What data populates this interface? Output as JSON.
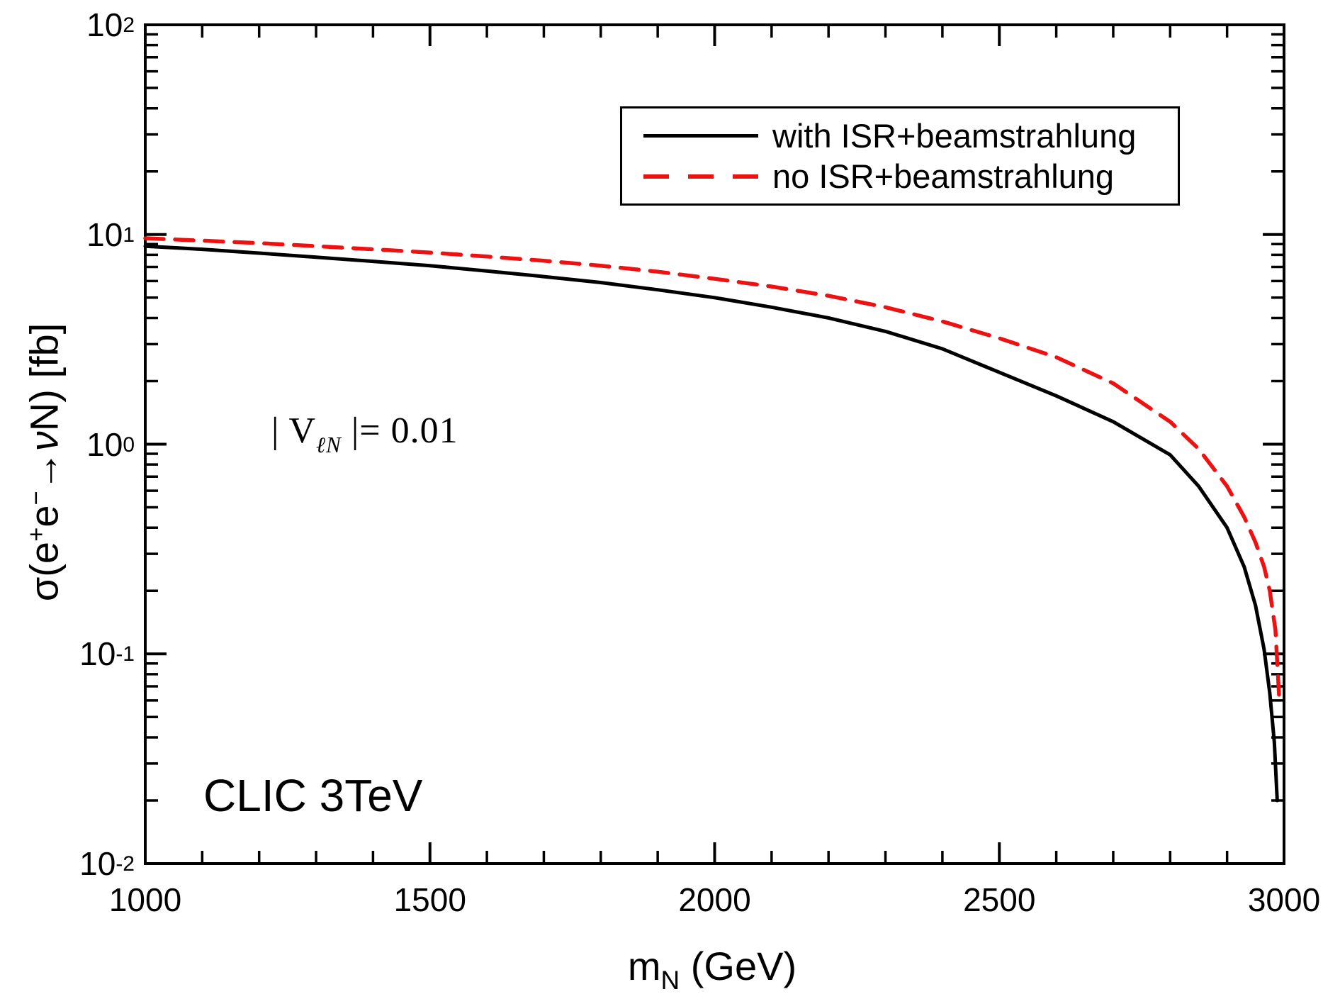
{
  "figure": {
    "background": "#ffffff",
    "frame_color": "#000000",
    "annotations": {
      "coupling_segments": [
        {
          "t": "| V"
        },
        {
          "t": "ℓN",
          "sub": true,
          "italic": true
        },
        {
          "t": " |= 0.01"
        }
      ],
      "coupling_plain": "| V_lN |= 0.01",
      "collider": "CLIC 3TeV"
    },
    "x_title_segments": [
      {
        "t": "m"
      },
      {
        "t": "N",
        "sub": true
      },
      {
        "t": " (GeV)"
      }
    ],
    "y_title_segments": [
      {
        "t": "σ(e"
      },
      {
        "t": "+",
        "sup": true
      },
      {
        "t": "e"
      },
      {
        "t": "−",
        "sup": true
      },
      {
        "t": "→"
      },
      {
        "t": "ν",
        "italic": true
      },
      {
        "t": "N) [fb]"
      }
    ],
    "legend": {
      "position": "upper right",
      "items": [
        {
          "label": "with ISR+beamstrahlung",
          "color": "#000000",
          "style": "solid"
        },
        {
          "label": "no ISR+beamstrahlung",
          "color": "#ee1111",
          "style": "dashed"
        }
      ]
    }
  },
  "chart_data": {
    "type": "line",
    "title": "",
    "xlabel": "m_N (GeV)",
    "ylabel": "sigma(e+ e- -> nu N) [fb]",
    "x_scale": "linear",
    "y_scale": "log",
    "xlim": [
      1000,
      3000
    ],
    "ylim": [
      0.01,
      100
    ],
    "grid": false,
    "legend_position": "upper right",
    "x_ticks_major": [
      1000,
      1500,
      2000,
      2500,
      3000
    ],
    "x_tick_labels": [
      "1000",
      "1500",
      "2000",
      "2500",
      "3000"
    ],
    "x_minor_step": 100,
    "y_ticks_major": [
      {
        "base": "10",
        "exp": "2",
        "value": 100
      },
      {
        "base": "10",
        "exp": "1",
        "value": 10
      },
      {
        "base": "10",
        "exp": "0",
        "value": 1
      },
      {
        "base": "10",
        "exp": "-1",
        "value": 0.1
      },
      {
        "base": "10",
        "exp": "-2",
        "value": 0.01
      }
    ],
    "series": [
      {
        "name": "with ISR+beamstrahlung",
        "curve_id": "curve-with-isr",
        "color": "#000000",
        "line": "solid",
        "x": [
          1000,
          1100,
          1200,
          1300,
          1400,
          1500,
          1600,
          1700,
          1800,
          1900,
          2000,
          2100,
          2200,
          2300,
          2400,
          2500,
          2600,
          2700,
          2800,
          2850,
          2900,
          2930,
          2950,
          2965,
          2975,
          2983,
          2988
        ],
        "y": [
          8.8,
          8.5,
          8.15,
          7.8,
          7.45,
          7.1,
          6.7,
          6.3,
          5.9,
          5.45,
          5.0,
          4.5,
          4.0,
          3.45,
          2.85,
          2.2,
          1.7,
          1.28,
          0.89,
          0.63,
          0.4,
          0.26,
          0.17,
          0.105,
          0.065,
          0.038,
          0.02
        ]
      },
      {
        "name": "no ISR+beamstrahlung",
        "curve_id": "curve-no-isr",
        "color": "#ee1111",
        "line": "dashed",
        "x": [
          1000,
          1100,
          1200,
          1300,
          1400,
          1500,
          1600,
          1700,
          1800,
          1900,
          2000,
          2100,
          2200,
          2300,
          2400,
          2500,
          2600,
          2700,
          2800,
          2850,
          2900,
          2930,
          2950,
          2965,
          2975,
          2985,
          2992
        ],
        "y": [
          9.6,
          9.35,
          9.1,
          8.8,
          8.5,
          8.2,
          7.85,
          7.5,
          7.1,
          6.65,
          6.15,
          5.65,
          5.1,
          4.5,
          3.85,
          3.2,
          2.6,
          1.95,
          1.28,
          0.95,
          0.63,
          0.45,
          0.34,
          0.26,
          0.2,
          0.13,
          0.058
        ]
      }
    ]
  }
}
